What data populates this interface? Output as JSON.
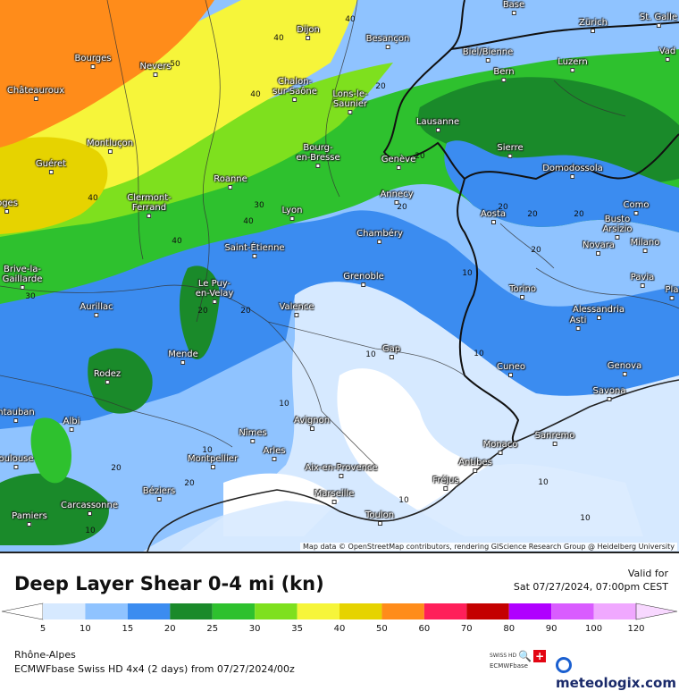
{
  "map": {
    "attribution": "Map data © OpenStreetMap contributors, rendering GIScience Research Group @ Heidelberg University",
    "cities": [
      {
        "id": "dijon",
        "name": "Dijon"
      },
      {
        "id": "besancon",
        "name": "Besançon"
      },
      {
        "id": "bourges",
        "name": "Bourges"
      },
      {
        "id": "nevers",
        "name": "Nevers"
      },
      {
        "id": "chateauroux",
        "name": "Châteauroux"
      },
      {
        "id": "chalon",
        "name": "Chalon-\nsur-Saône"
      },
      {
        "id": "lons",
        "name": "Lons-le-\nSaunier"
      },
      {
        "id": "montlucon",
        "name": "Montluçon"
      },
      {
        "id": "gueret",
        "name": "Guéret"
      },
      {
        "id": "bourg",
        "name": "Bourg-\nen-Bresse"
      },
      {
        "id": "roanne",
        "name": "Roanne"
      },
      {
        "id": "clermont",
        "name": "Clermont-\nFerrand"
      },
      {
        "id": "lyon",
        "name": "Lyon"
      },
      {
        "id": "limoges",
        "name": "oges"
      },
      {
        "id": "stetienne",
        "name": "Saint-Étienne"
      },
      {
        "id": "brive",
        "name": "Brive-la-\nGaillarde"
      },
      {
        "id": "lepuy",
        "name": "Le Puy-\nen-Velay"
      },
      {
        "id": "aurillac",
        "name": "Aurillac"
      },
      {
        "id": "valence",
        "name": "Valence"
      },
      {
        "id": "mende",
        "name": "Mende"
      },
      {
        "id": "rodez",
        "name": "Rodez"
      },
      {
        "id": "montauban",
        "name": "ntauban"
      },
      {
        "id": "albi",
        "name": "Albi"
      },
      {
        "id": "nimes",
        "name": "Nîmes"
      },
      {
        "id": "avignon",
        "name": "Avignon"
      },
      {
        "id": "arles",
        "name": "Arles"
      },
      {
        "id": "montpellier",
        "name": "Montpellier"
      },
      {
        "id": "toulouse",
        "name": "oulouse"
      },
      {
        "id": "beziers",
        "name": "Béziers"
      },
      {
        "id": "carcassonne",
        "name": "Carcassonne"
      },
      {
        "id": "pamiers",
        "name": "Pamiers"
      },
      {
        "id": "aix",
        "name": "Aix-en-Provence"
      },
      {
        "id": "marseille",
        "name": "Marseille"
      },
      {
        "id": "toulon",
        "name": "Toulon"
      },
      {
        "id": "frejus",
        "name": "Fréjus"
      },
      {
        "id": "antibes",
        "name": "Antibes"
      },
      {
        "id": "monaco",
        "name": "Monaco"
      },
      {
        "id": "sanremo",
        "name": "Sanremo"
      },
      {
        "id": "gap",
        "name": "Gap"
      },
      {
        "id": "grenoble",
        "name": "Grenoble"
      },
      {
        "id": "chambery",
        "name": "Chambéry"
      },
      {
        "id": "annecy",
        "name": "Annecy"
      },
      {
        "id": "geneve",
        "name": "Genève"
      },
      {
        "id": "lausanne",
        "name": "Lausanne"
      },
      {
        "id": "bern",
        "name": "Bern"
      },
      {
        "id": "biel",
        "name": "Biel/Bienne"
      },
      {
        "id": "basel",
        "name": "Base"
      },
      {
        "id": "zurich",
        "name": "Zürich"
      },
      {
        "id": "stgallen",
        "name": "St. Galle"
      },
      {
        "id": "luzern",
        "name": "Luzern"
      },
      {
        "id": "vaduz",
        "name": "Vad"
      },
      {
        "id": "sierre",
        "name": "Sierre"
      },
      {
        "id": "domodossola",
        "name": "Domodossola"
      },
      {
        "id": "aosta",
        "name": "Aosta"
      },
      {
        "id": "busto",
        "name": "Busto\nArsizio"
      },
      {
        "id": "como",
        "name": "Como"
      },
      {
        "id": "novara",
        "name": "Novara"
      },
      {
        "id": "milano",
        "name": "Milano"
      },
      {
        "id": "torino",
        "name": "Torino"
      },
      {
        "id": "pavia",
        "name": "Pavia"
      },
      {
        "id": "piacenza",
        "name": "Pla"
      },
      {
        "id": "alessandria",
        "name": "Alessandria"
      },
      {
        "id": "asti",
        "name": "Asti"
      },
      {
        "id": "cuneo",
        "name": "Cuneo"
      },
      {
        "id": "genova",
        "name": "Genova"
      },
      {
        "id": "savona",
        "name": "Savona"
      }
    ],
    "contour_labels": [
      "50",
      "40",
      "40",
      "40",
      "40",
      "40",
      "40",
      "30",
      "30",
      "20",
      "20",
      "20",
      "20",
      "20",
      "20",
      "20",
      "20",
      "20",
      "20",
      "20",
      "10",
      "10",
      "10",
      "10",
      "10",
      "10",
      "10",
      "10",
      "10"
    ]
  },
  "footer": {
    "title": "Deep Layer Shear 0-4 mi (kn)",
    "valid_label": "Valid for",
    "valid_time": "Sat 07/27/2024, 07:00pm CEST",
    "region": "Rhône-Alpes",
    "model": "ECMWFbase Swiss HD 4x4 (2 days) from 07/27/2024/00z",
    "brand": "meteologix.com",
    "small_logo_top": "SWISS HD",
    "small_logo_bottom": "ECMWFbase"
  },
  "legend": {
    "ticks": [
      "5",
      "10",
      "15",
      "20",
      "25",
      "30",
      "35",
      "40",
      "50",
      "60",
      "70",
      "80",
      "90",
      "100",
      "120"
    ],
    "colors": [
      "#d6e9ff",
      "#8fc3ff",
      "#3b8cf0",
      "#1a8a2a",
      "#2ec12e",
      "#7ee01e",
      "#f6f53a",
      "#e6d300",
      "#ff8c1a",
      "#ff1f5a",
      "#c40000",
      "#b000ff",
      "#d95cff",
      "#f0a8ff"
    ]
  }
}
